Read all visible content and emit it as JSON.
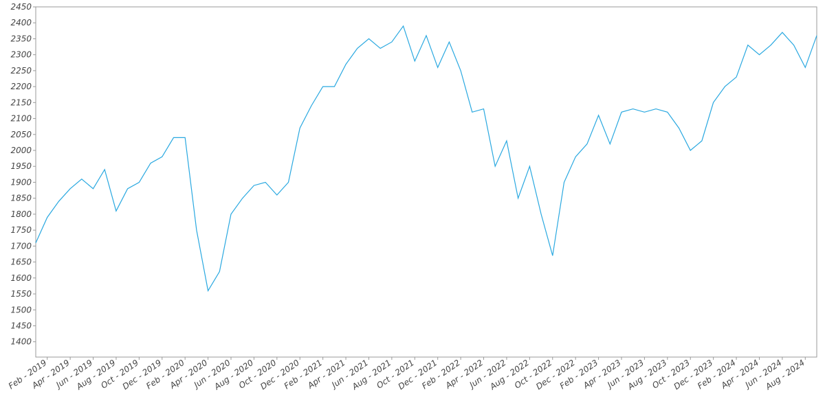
{
  "chart_data": {
    "type": "line",
    "color": "#29a8e0",
    "x": [
      "2019-01",
      "2019-02",
      "2019-03",
      "2019-04",
      "2019-05",
      "2019-06",
      "2019-07",
      "2019-08",
      "2019-09",
      "2019-10",
      "2019-11",
      "2019-12",
      "2020-01",
      "2020-02",
      "2020-03",
      "2020-04",
      "2020-05",
      "2020-06",
      "2020-07",
      "2020-08",
      "2020-09",
      "2020-10",
      "2020-11",
      "2020-12",
      "2021-01",
      "2021-02",
      "2021-03",
      "2021-04",
      "2021-05",
      "2021-06",
      "2021-07",
      "2021-08",
      "2021-09",
      "2021-10",
      "2021-11",
      "2021-12",
      "2022-01",
      "2022-02",
      "2022-03",
      "2022-04",
      "2022-05",
      "2022-06",
      "2022-07",
      "2022-08",
      "2022-09",
      "2022-10",
      "2022-11",
      "2022-12",
      "2023-01",
      "2023-02",
      "2023-03",
      "2023-04",
      "2023-05",
      "2023-06",
      "2023-07",
      "2023-08",
      "2023-09",
      "2023-10",
      "2023-11",
      "2023-12",
      "2024-01",
      "2024-02",
      "2024-03",
      "2024-04",
      "2024-05",
      "2024-06",
      "2024-07",
      "2024-08",
      "2024-09"
    ],
    "values": [
      1710,
      1790,
      1840,
      1880,
      1910,
      1880,
      1940,
      1810,
      1880,
      1900,
      1960,
      1980,
      2040,
      2040,
      1750,
      1560,
      1620,
      1800,
      1850,
      1890,
      1900,
      1860,
      1900,
      2070,
      2140,
      2200,
      2200,
      2270,
      2320,
      2350,
      2320,
      2340,
      2390,
      2280,
      2360,
      2260,
      2340,
      2250,
      2120,
      2130,
      1950,
      2030,
      1850,
      1950,
      1800,
      1670,
      1900,
      1980,
      2020,
      2110,
      2020,
      2120,
      2130,
      2120,
      2130,
      2120,
      2070,
      2000,
      2030,
      2150,
      2200,
      2230,
      2330,
      2300,
      2330,
      2370,
      2330,
      2260,
      2360
    ],
    "xlim": [
      "2019-01",
      "2024-09"
    ],
    "xticks": [
      {
        "value": "2019-02",
        "label": "Feb - 2019"
      },
      {
        "value": "2019-04",
        "label": "Apr - 2019"
      },
      {
        "value": "2019-06",
        "label": "Jun - 2019"
      },
      {
        "value": "2019-08",
        "label": "Aug - 2019"
      },
      {
        "value": "2019-10",
        "label": "Oct - 2019"
      },
      {
        "value": "2019-12",
        "label": "Dec - 2019"
      },
      {
        "value": "2020-02",
        "label": "Feb - 2020"
      },
      {
        "value": "2020-04",
        "label": "Apr - 2020"
      },
      {
        "value": "2020-06",
        "label": "Jun - 2020"
      },
      {
        "value": "2020-08",
        "label": "Aug - 2020"
      },
      {
        "value": "2020-10",
        "label": "Oct - 2020"
      },
      {
        "value": "2020-12",
        "label": "Dec - 2020"
      },
      {
        "value": "2021-02",
        "label": "Feb - 2021"
      },
      {
        "value": "2021-04",
        "label": "Apr - 2021"
      },
      {
        "value": "2021-06",
        "label": "Jun - 2021"
      },
      {
        "value": "2021-08",
        "label": "Aug - 2021"
      },
      {
        "value": "2021-10",
        "label": "Oct - 2021"
      },
      {
        "value": "2021-12",
        "label": "Dec - 2021"
      },
      {
        "value": "2022-02",
        "label": "Feb - 2022"
      },
      {
        "value": "2022-04",
        "label": "Apr - 2022"
      },
      {
        "value": "2022-06",
        "label": "Jun - 2022"
      },
      {
        "value": "2022-08",
        "label": "Aug - 2022"
      },
      {
        "value": "2022-10",
        "label": "Oct - 2022"
      },
      {
        "value": "2022-12",
        "label": "Dec - 2022"
      },
      {
        "value": "2023-02",
        "label": "Feb - 2023"
      },
      {
        "value": "2023-04",
        "label": "Apr - 2023"
      },
      {
        "value": "2023-06",
        "label": "Jun - 2023"
      },
      {
        "value": "2023-08",
        "label": "Aug - 2023"
      },
      {
        "value": "2023-10",
        "label": "Oct - 2023"
      },
      {
        "value": "2023-12",
        "label": "Dec - 2023"
      },
      {
        "value": "2024-02",
        "label": "Feb - 2024"
      },
      {
        "value": "2024-04",
        "label": "Apr - 2024"
      },
      {
        "value": "2024-06",
        "label": "Jun - 2024"
      },
      {
        "value": "2024-08",
        "label": "Aug - 2024"
      }
    ],
    "ylim": [
      1352,
      2450
    ],
    "yticks": [
      1400,
      1450,
      1500,
      1550,
      1600,
      1650,
      1700,
      1750,
      1800,
      1850,
      1900,
      1950,
      2000,
      2050,
      2100,
      2150,
      2200,
      2250,
      2300,
      2350,
      2400,
      2450
    ]
  }
}
